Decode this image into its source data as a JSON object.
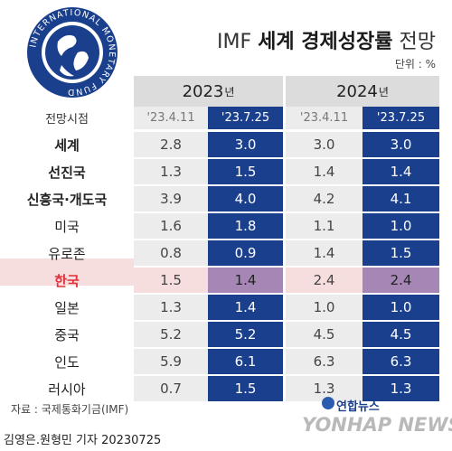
{
  "title": {
    "normal": "IMF ",
    "bold": "세계 경제성장률",
    "suffix": " 전망"
  },
  "unit": "단위 : %",
  "logo": {
    "ring_text": "INTERNATIONAL MONETARY FUND",
    "color": "#1a3f8c"
  },
  "columns": {
    "year_suffix": "년",
    "years": [
      "2023",
      "2024"
    ],
    "label_header": "전망시점",
    "dates": [
      "'23.4.11",
      "'23.7.25",
      "'23.4.11",
      "'23.7.25"
    ]
  },
  "chart_data": {
    "type": "table",
    "title": "IMF 세계 경제성장률 전망",
    "unit": "%",
    "highlight_row": "한국",
    "rows": [
      {
        "label": "세계",
        "bold": true,
        "values": [
          "2.8",
          "3.0",
          "3.0",
          "3.0"
        ]
      },
      {
        "label": "선진국",
        "bold": true,
        "values": [
          "1.3",
          "1.5",
          "1.4",
          "1.4"
        ]
      },
      {
        "label": "신흥국·개도국",
        "bold": true,
        "values": [
          "3.9",
          "4.0",
          "4.2",
          "4.1"
        ]
      },
      {
        "label": "미국",
        "bold": false,
        "values": [
          "1.6",
          "1.8",
          "1.1",
          "1.0"
        ]
      },
      {
        "label": "유로존",
        "bold": false,
        "values": [
          "0.8",
          "0.9",
          "1.4",
          "1.5"
        ]
      },
      {
        "label": "한국",
        "bold": true,
        "values": [
          "1.5",
          "1.4",
          "2.4",
          "2.4"
        ]
      },
      {
        "label": "일본",
        "bold": false,
        "values": [
          "1.3",
          "1.4",
          "1.0",
          "1.0"
        ]
      },
      {
        "label": "중국",
        "bold": false,
        "values": [
          "5.2",
          "5.2",
          "4.5",
          "4.5"
        ]
      },
      {
        "label": "인도",
        "bold": false,
        "values": [
          "5.9",
          "6.1",
          "6.3",
          "6.3"
        ]
      },
      {
        "label": "러시아",
        "bold": false,
        "values": [
          "0.7",
          "1.5",
          "1.3",
          "1.3"
        ]
      }
    ]
  },
  "colors": {
    "header_gray": "#dcdcdc",
    "cell_gray": "#ececec",
    "cell_blue": "#1a3f8c",
    "korea_red": "#e0303a",
    "date_blue": "#1a3f8c"
  },
  "source": "자료 : 국제통화기금(IMF)",
  "byline": "김영은.원형민 기자  20230725",
  "agency": {
    "korean": "연합뉴스",
    "wordmark": "YONHAP NEWS"
  }
}
